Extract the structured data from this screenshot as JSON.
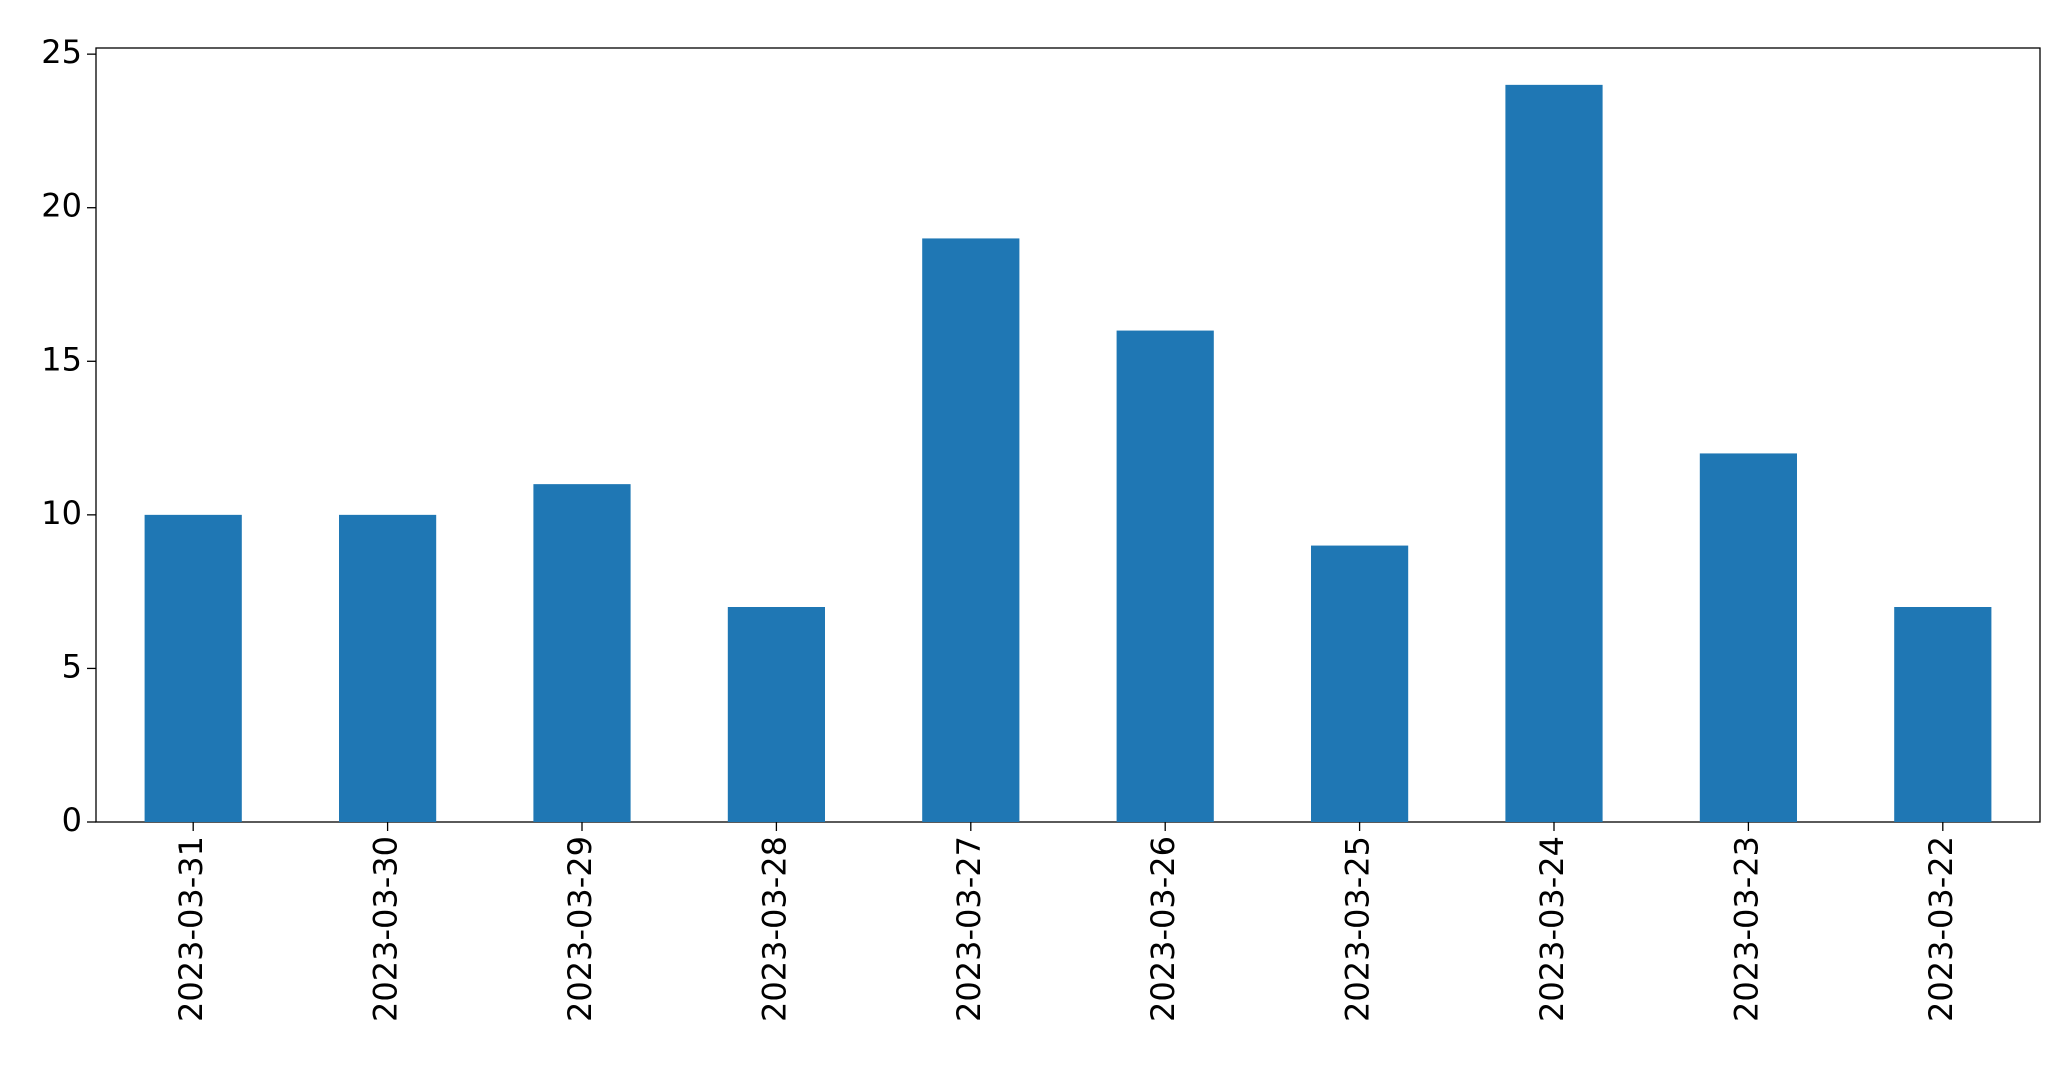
{
  "chart_data": {
    "type": "bar",
    "categories": [
      "2023-03-31",
      "2023-03-30",
      "2023-03-29",
      "2023-03-28",
      "2023-03-27",
      "2023-03-26",
      "2023-03-25",
      "2023-03-24",
      "2023-03-23",
      "2023-03-22"
    ],
    "values": [
      10,
      10,
      11,
      7,
      19,
      16,
      9,
      24,
      12,
      7
    ],
    "color": "#1f77b4",
    "ylim": [
      0,
      25.2
    ],
    "yticks": [
      0,
      5,
      10,
      15,
      20,
      25
    ],
    "grid": false
  }
}
